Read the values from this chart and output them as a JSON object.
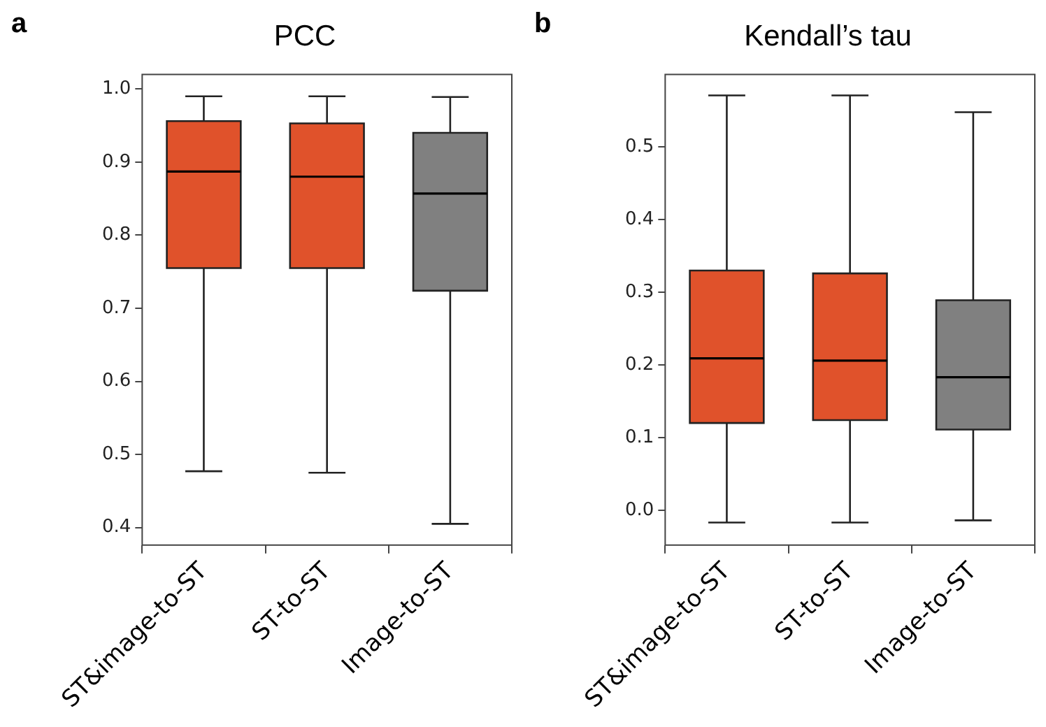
{
  "chart_data": [
    {
      "type": "box",
      "title": "PCC",
      "annotations": [
        "a"
      ],
      "categories": [
        "ST&image-to-ST",
        "ST-to-ST",
        "Image-to-ST"
      ],
      "colors": [
        "#e0522b",
        "#e0522b",
        "#808080"
      ],
      "boxes": [
        {
          "low": 0.477,
          "q1": 0.755,
          "median": 0.887,
          "q3": 0.956,
          "high": 0.99
        },
        {
          "low": 0.475,
          "q1": 0.755,
          "median": 0.88,
          "q3": 0.953,
          "high": 0.99
        },
        {
          "low": 0.405,
          "q1": 0.724,
          "median": 0.857,
          "q3": 0.94,
          "high": 0.989
        }
      ],
      "ylim": [
        0.376,
        1.02
      ],
      "yticks": [
        0.4,
        0.5,
        0.6,
        0.7,
        0.8,
        0.9,
        {
          "value": 1,
          "label": "1.0"
        }
      ],
      "grid": false
    },
    {
      "type": "box",
      "title": "Kendall’s tau",
      "annotations": [
        "b"
      ],
      "categories": [
        "ST&image-to-ST",
        "ST-to-ST",
        "Image-to-ST"
      ],
      "colors": [
        "#e0522b",
        "#e0522b",
        "#808080"
      ],
      "boxes": [
        {
          "low": -0.017,
          "q1": 0.12,
          "median": 0.209,
          "q3": 0.33,
          "high": 0.571
        },
        {
          "low": -0.017,
          "q1": 0.124,
          "median": 0.206,
          "q3": 0.326,
          "high": 0.571
        },
        {
          "low": -0.014,
          "q1": 0.111,
          "median": 0.183,
          "q3": 0.289,
          "high": 0.548
        }
      ],
      "ylim": [
        -0.048,
        0.6
      ],
      "yticks": [
        {
          "value": 0,
          "label": "0.0"
        },
        0.1,
        0.2,
        0.3,
        0.4,
        0.5
      ],
      "grid": false
    }
  ]
}
